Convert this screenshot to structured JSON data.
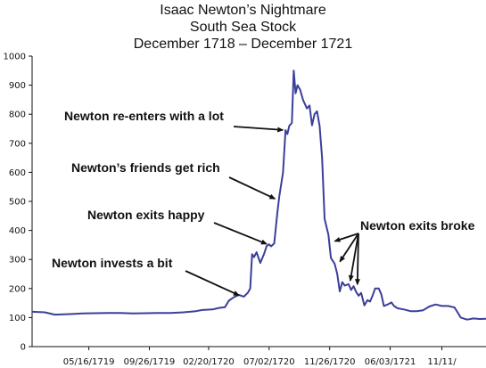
{
  "chart_data": {
    "type": "line",
    "title": "Isaac Newton’s Nightmare",
    "subtitle_line1": "South Sea Stock",
    "subtitle_line2": "December 1718 – December 1721",
    "xlabel": "",
    "ylabel": "",
    "ylim": [
      0,
      1000
    ],
    "yticks": [
      0,
      100,
      200,
      300,
      400,
      500,
      600,
      700,
      800,
      900,
      1000
    ],
    "xlim": [
      0,
      36
    ],
    "xtick_positions": [
      4.5,
      9.3,
      14.0,
      18.8,
      23.6,
      28.4,
      32.5
    ],
    "xtick_labels": [
      "05/16/1719",
      "09/26/1719",
      "02/20/1720",
      "07/02/1720",
      "11/26/1720",
      "06/03/1721",
      "11/11/"
    ],
    "grid": false,
    "legend": "none",
    "line_color": "#3a3f9a",
    "series": [
      {
        "points": [
          [
            0,
            120
          ],
          [
            1,
            118
          ],
          [
            1.8,
            110
          ],
          [
            3,
            112
          ],
          [
            4,
            114
          ],
          [
            5,
            115
          ],
          [
            6,
            116
          ],
          [
            7,
            116
          ],
          [
            8,
            114
          ],
          [
            9,
            115
          ],
          [
            10,
            116
          ],
          [
            11,
            116
          ],
          [
            12,
            118
          ],
          [
            13,
            122
          ],
          [
            13.5,
            126
          ],
          [
            14.3,
            128
          ],
          [
            14.8,
            133
          ],
          [
            15.3,
            136
          ],
          [
            15.6,
            158
          ],
          [
            16.0,
            170
          ],
          [
            16.4,
            178
          ],
          [
            16.8,
            172
          ],
          [
            17.1,
            185
          ],
          [
            17.3,
            200
          ],
          [
            17.45,
            318
          ],
          [
            17.6,
            308
          ],
          [
            17.8,
            325
          ],
          [
            18.1,
            288
          ],
          [
            18.4,
            320
          ],
          [
            18.6,
            346
          ],
          [
            18.8,
            352
          ],
          [
            18.95,
            345
          ],
          [
            19.2,
            355
          ],
          [
            19.45,
            460
          ],
          [
            19.6,
            515
          ],
          [
            19.9,
            600
          ],
          [
            20.1,
            745
          ],
          [
            20.25,
            732
          ],
          [
            20.4,
            760
          ],
          [
            20.6,
            770
          ],
          [
            20.75,
            950
          ],
          [
            20.9,
            872
          ],
          [
            21.05,
            900
          ],
          [
            21.25,
            885
          ],
          [
            21.5,
            848
          ],
          [
            21.8,
            820
          ],
          [
            22.0,
            830
          ],
          [
            22.2,
            762
          ],
          [
            22.4,
            800
          ],
          [
            22.6,
            810
          ],
          [
            22.8,
            760
          ],
          [
            23.0,
            650
          ],
          [
            23.2,
            440
          ],
          [
            23.5,
            385
          ],
          [
            23.7,
            305
          ],
          [
            24.0,
            285
          ],
          [
            24.2,
            250
          ],
          [
            24.4,
            190
          ],
          [
            24.6,
            222
          ],
          [
            24.8,
            210
          ],
          [
            25.1,
            215
          ],
          [
            25.3,
            195
          ],
          [
            25.5,
            208
          ],
          [
            25.7,
            188
          ],
          [
            25.9,
            175
          ],
          [
            26.1,
            185
          ],
          [
            26.35,
            142
          ],
          [
            26.6,
            160
          ],
          [
            26.8,
            155
          ],
          [
            27.0,
            175
          ],
          [
            27.2,
            200
          ],
          [
            27.5,
            200
          ],
          [
            27.7,
            180
          ],
          [
            27.9,
            140
          ],
          [
            28.2,
            145
          ],
          [
            28.5,
            152
          ],
          [
            28.7,
            140
          ],
          [
            29.0,
            132
          ],
          [
            29.5,
            128
          ],
          [
            30.0,
            122
          ],
          [
            30.5,
            122
          ],
          [
            31.0,
            125
          ],
          [
            31.5,
            138
          ],
          [
            32.0,
            145
          ],
          [
            32.5,
            140
          ],
          [
            33.0,
            140
          ],
          [
            33.5,
            135
          ],
          [
            34.0,
            100
          ],
          [
            34.5,
            93
          ],
          [
            35.0,
            97
          ],
          [
            35.5,
            95
          ],
          [
            36,
            96
          ]
        ]
      }
    ],
    "annotations": [
      {
        "text": "Newton re-enters with a lot",
        "target": [
          20.1,
          745
        ]
      },
      {
        "text": "Newton’s friends get rich",
        "target": [
          19.45,
          505
        ]
      },
      {
        "text": "Newton exits happy",
        "target": [
          18.8,
          350
        ]
      },
      {
        "text": "Newton invests a bit",
        "target": [
          16.6,
          173
        ]
      },
      {
        "text": "Newton exits broke",
        "targets": [
          [
            23.8,
            360
          ],
          [
            24.3,
            285
          ],
          [
            25.2,
            218
          ],
          [
            25.8,
            205
          ]
        ]
      }
    ]
  }
}
